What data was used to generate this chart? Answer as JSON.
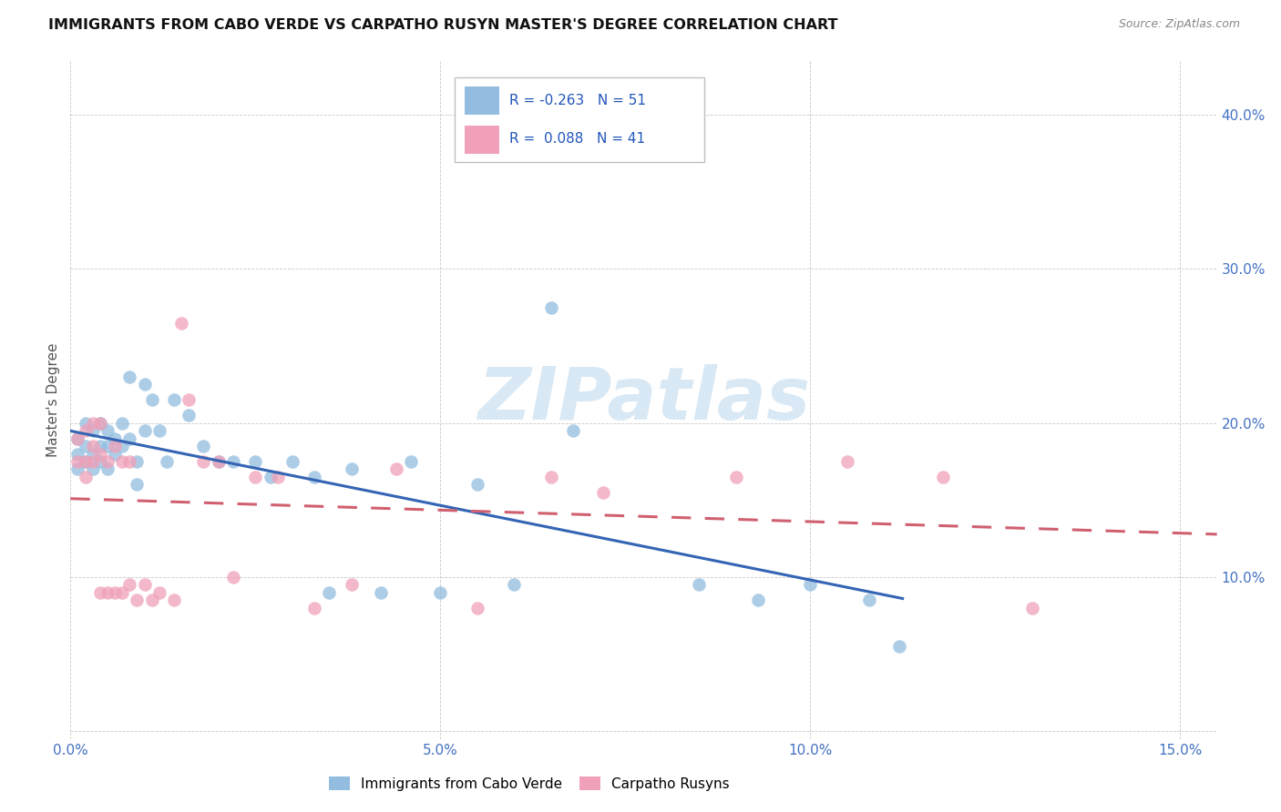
{
  "title": "IMMIGRANTS FROM CABO VERDE VS CARPATHO RUSYN MASTER'S DEGREE CORRELATION CHART",
  "source": "Source: ZipAtlas.com",
  "ylabel": "Master's Degree",
  "xlim": [
    0.0,
    0.155
  ],
  "ylim": [
    -0.005,
    0.435
  ],
  "xticks": [
    0.0,
    0.05,
    0.1,
    0.15
  ],
  "xtick_labels": [
    "0.0%",
    "5.0%",
    "10.0%",
    "15.0%"
  ],
  "yticks": [
    0.0,
    0.1,
    0.2,
    0.3,
    0.4
  ],
  "ytick_labels": [
    "",
    "10.0%",
    "20.0%",
    "30.0%",
    "40.0%"
  ],
  "legend1_label": "Immigrants from Cabo Verde",
  "legend2_label": "Carpatho Rusyns",
  "r1": "-0.263",
  "n1": "51",
  "r2": "0.088",
  "n2": "41",
  "color1": "#92bde0",
  "color2": "#f0a0b8",
  "trendline1_color": "#3464b4",
  "trendline2_color": "#d06070",
  "watermark_color": "#d8e8f4",
  "cabo_verde_x": [
    0.001,
    0.001,
    0.001,
    0.002,
    0.002,
    0.002,
    0.003,
    0.003,
    0.003,
    0.004,
    0.004,
    0.004,
    0.005,
    0.005,
    0.005,
    0.006,
    0.006,
    0.007,
    0.007,
    0.008,
    0.008,
    0.009,
    0.009,
    0.01,
    0.01,
    0.011,
    0.012,
    0.013,
    0.014,
    0.016,
    0.018,
    0.02,
    0.022,
    0.025,
    0.027,
    0.03,
    0.033,
    0.035,
    0.038,
    0.042,
    0.046,
    0.05,
    0.055,
    0.06,
    0.065,
    0.068,
    0.085,
    0.093,
    0.1,
    0.108,
    0.112
  ],
  "cabo_verde_y": [
    0.19,
    0.18,
    0.17,
    0.2,
    0.185,
    0.175,
    0.195,
    0.18,
    0.17,
    0.2,
    0.185,
    0.175,
    0.195,
    0.185,
    0.17,
    0.19,
    0.18,
    0.2,
    0.185,
    0.19,
    0.23,
    0.175,
    0.16,
    0.195,
    0.225,
    0.215,
    0.195,
    0.175,
    0.215,
    0.205,
    0.185,
    0.175,
    0.175,
    0.175,
    0.165,
    0.175,
    0.165,
    0.09,
    0.17,
    0.09,
    0.175,
    0.09,
    0.16,
    0.095,
    0.275,
    0.195,
    0.095,
    0.085,
    0.095,
    0.085,
    0.055
  ],
  "rusyn_x": [
    0.001,
    0.001,
    0.002,
    0.002,
    0.002,
    0.003,
    0.003,
    0.003,
    0.004,
    0.004,
    0.004,
    0.005,
    0.005,
    0.006,
    0.006,
    0.007,
    0.007,
    0.008,
    0.008,
    0.009,
    0.01,
    0.011,
    0.012,
    0.014,
    0.015,
    0.016,
    0.018,
    0.02,
    0.022,
    0.025,
    0.028,
    0.033,
    0.038,
    0.044,
    0.055,
    0.065,
    0.072,
    0.09,
    0.105,
    0.118,
    0.13
  ],
  "rusyn_y": [
    0.19,
    0.175,
    0.195,
    0.175,
    0.165,
    0.185,
    0.175,
    0.2,
    0.18,
    0.2,
    0.09,
    0.175,
    0.09,
    0.185,
    0.09,
    0.175,
    0.09,
    0.095,
    0.175,
    0.085,
    0.095,
    0.085,
    0.09,
    0.085,
    0.265,
    0.215,
    0.175,
    0.175,
    0.1,
    0.165,
    0.165,
    0.08,
    0.095,
    0.17,
    0.08,
    0.165,
    0.155,
    0.165,
    0.175,
    0.165,
    0.08
  ],
  "trendline1_x": [
    0.0,
    0.1125
  ],
  "trendline2_x": [
    0.0,
    0.155
  ]
}
